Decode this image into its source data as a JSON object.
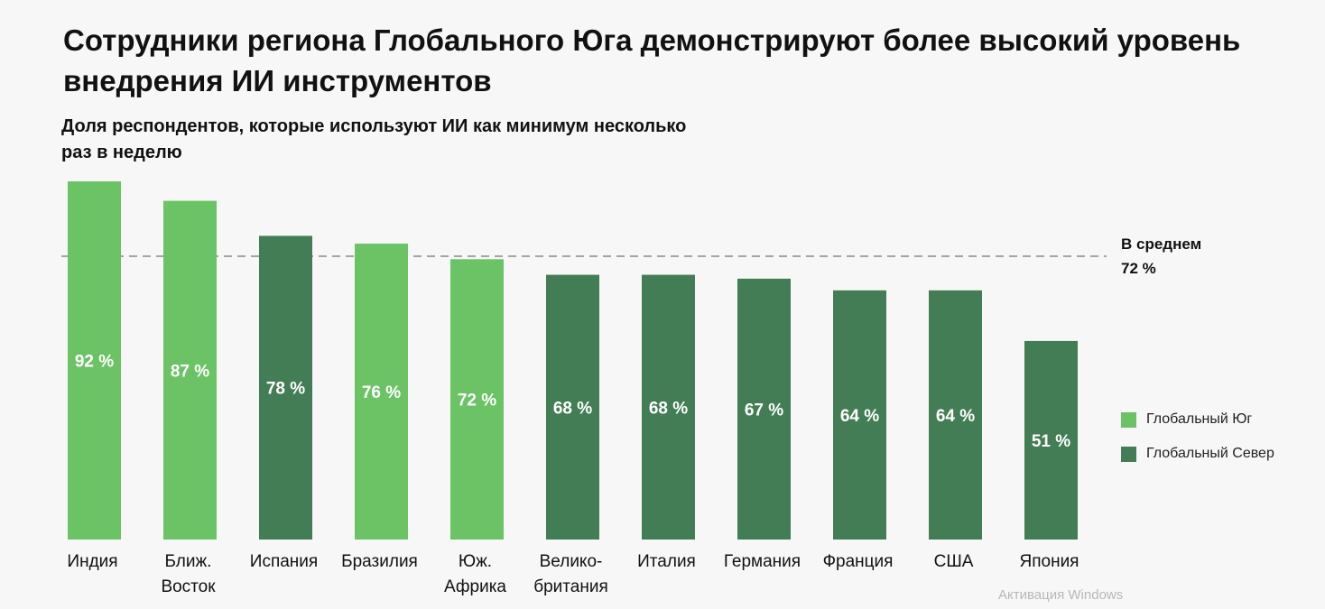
{
  "title": "Сотрудники региона Глобального Юга демонстрируют более высокий уровень внедрения  ИИ инструментов",
  "watermark": "Активация Windows",
  "colors": {
    "south": "#6cc366",
    "north": "#437d55",
    "avg_line": "#8a8a8a",
    "background": "#f7f7f7"
  },
  "chart_data": {
    "type": "bar",
    "title": "Доля  респондентов, которые используют ИИ как минимум несколько раз в неделю",
    "categories": [
      "Индия",
      "Ближ.\nВосток",
      "Испания",
      "Бразилия",
      "Юж.\nАфрика",
      "Велико-\nбритания",
      "Италия",
      "Германия",
      "Франция",
      "США",
      "Япония"
    ],
    "values": [
      92,
      87,
      78,
      76,
      72,
      68,
      68,
      67,
      64,
      64,
      51
    ],
    "value_labels": [
      "92 %",
      "87 %",
      "78 %",
      "76 %",
      "72 %",
      "68 %",
      "68 %",
      "67 %",
      "64 %",
      "64 %",
      "51 %"
    ],
    "groups": [
      "south",
      "south",
      "north",
      "south",
      "south",
      "north",
      "north",
      "north",
      "north",
      "north",
      "north"
    ],
    "series": [
      {
        "key": "south",
        "name": "Глобальный Юг",
        "color": "#6cc366"
      },
      {
        "key": "north",
        "name": "Глобальный Север",
        "color": "#437d55"
      }
    ],
    "average": {
      "value": 72,
      "label_line1": "В среднем",
      "label_line2": "72 %",
      "style": "dashed"
    },
    "ylim": [
      0,
      92
    ],
    "grid": false,
    "legend_position": "right"
  }
}
